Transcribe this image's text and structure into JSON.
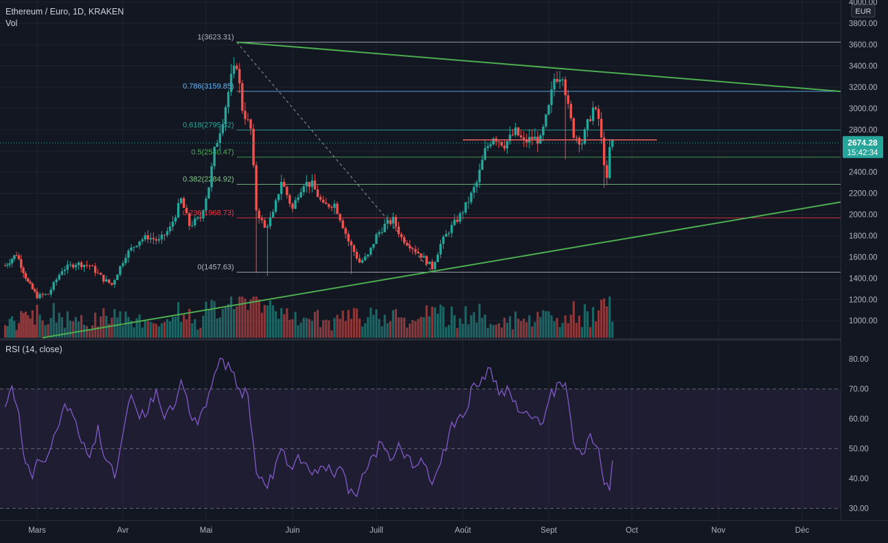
{
  "header": {
    "symbol_line": "Ethereum / Euro, 1D, KRAKEN",
    "volume_label": "Vol"
  },
  "rsi": {
    "label": "RSI (14, close)"
  },
  "price_scale": {
    "currency": "EUR",
    "last_price": "2674.28",
    "countdown": "15:42:34"
  },
  "colors": {
    "background": "#131722",
    "grid": "#1f2330",
    "up": "#26a69a",
    "down": "#ef5350",
    "trendline": "#4caf50",
    "rsi_line": "#7e57c2",
    "rsi_band": "rgba(126,87,194,0.10)",
    "last_price": "#26a69a",
    "resistance": "#f06262"
  },
  "chart_data": [
    {
      "type": "candlestick",
      "title": "Ethereum / Euro, 1D, KRAKEN",
      "x_ticks": [
        "Mars",
        "Avr",
        "Mai",
        "Juin",
        "Juill",
        "Août",
        "Sept",
        "Oct",
        "Nov",
        "Déc"
      ],
      "y_ticks": [
        "1000.00",
        "1200.00",
        "1400.00",
        "1600.00",
        "1800.00",
        "2000.00",
        "2200.00",
        "2400.00",
        "2600.00",
        "2800.00",
        "3000.00",
        "3200.00",
        "3400.00",
        "3600.00",
        "3800.00",
        "4000.00"
      ],
      "ylim": [
        840,
        4020
      ],
      "fib_levels": [
        {
          "label": "1(3623.31)",
          "value": 3623.31,
          "color": "#b2b5be"
        },
        {
          "label": "0.786(3159.85)",
          "value": 3159.85,
          "color": "#64b5f6"
        },
        {
          "label": "0.618(2795.32)",
          "value": 2795.32,
          "color": "#26a69a"
        },
        {
          "label": "0.5(2540.47)",
          "value": 2540.47,
          "color": "#4caf50"
        },
        {
          "label": "0.382(2284.92)",
          "value": 2284.92,
          "color": "#81c784"
        },
        {
          "label": "0.236(1968.73)",
          "value": 1968.73,
          "color": "#f23645"
        },
        {
          "label": "0(1457.63)",
          "value": 1457.63,
          "color": "#b2b5be"
        }
      ],
      "trendlines": [
        {
          "name": "upper",
          "from": [
            "2021-05-12",
            3623
          ],
          "to": [
            "2021-12-31",
            3125
          ]
        },
        {
          "name": "lower",
          "from": [
            "2021-03-03",
            840
          ],
          "to": [
            "2021-12-31",
            2190
          ]
        }
      ],
      "resistance": {
        "from": "2021-08-01",
        "to": "2021-10-10",
        "value": 2703
      },
      "last_price": 2674.28,
      "price_path": [
        [
          "2021-02-15",
          1520
        ],
        [
          "2021-02-20",
          1630
        ],
        [
          "2021-02-25",
          1360
        ],
        [
          "2021-03-01",
          1230
        ],
        [
          "2021-03-05",
          1250
        ],
        [
          "2021-03-10",
          1480
        ],
        [
          "2021-03-15",
          1540
        ],
        [
          "2021-03-20",
          1520
        ],
        [
          "2021-03-25",
          1390
        ],
        [
          "2021-03-28",
          1340
        ],
        [
          "2021-04-02",
          1620
        ],
        [
          "2021-04-07",
          1760
        ],
        [
          "2021-04-10",
          1790
        ],
        [
          "2021-04-14",
          1750
        ],
        [
          "2021-04-18",
          1870
        ],
        [
          "2021-04-22",
          2140
        ],
        [
          "2021-04-25",
          1900
        ],
        [
          "2021-04-29",
          1970
        ],
        [
          "2021-05-02",
          2270
        ],
        [
          "2021-05-04",
          2600
        ],
        [
          "2021-05-07",
          2900
        ],
        [
          "2021-05-10",
          3280
        ],
        [
          "2021-05-12",
          3420
        ],
        [
          "2021-05-14",
          3000
        ],
        [
          "2021-05-17",
          2800
        ],
        [
          "2021-05-19",
          2050
        ],
        [
          "2021-05-22",
          1870
        ],
        [
          "2021-05-25",
          2000
        ],
        [
          "2021-05-28",
          2320
        ],
        [
          "2021-06-01",
          2050
        ],
        [
          "2021-06-03",
          2200
        ],
        [
          "2021-06-05",
          2300
        ],
        [
          "2021-06-08",
          2280
        ],
        [
          "2021-06-12",
          2080
        ],
        [
          "2021-06-16",
          2100
        ],
        [
          "2021-06-18",
          1970
        ],
        [
          "2021-06-21",
          1750
        ],
        [
          "2021-06-25",
          1550
        ],
        [
          "2021-06-28",
          1610
        ],
        [
          "2021-07-01",
          1800
        ],
        [
          "2021-07-04",
          1900
        ],
        [
          "2021-07-07",
          1950
        ],
        [
          "2021-07-10",
          1780
        ],
        [
          "2021-07-14",
          1690
        ],
        [
          "2021-07-18",
          1590
        ],
        [
          "2021-07-21",
          1500
        ],
        [
          "2021-07-24",
          1720
        ],
        [
          "2021-07-27",
          1850
        ],
        [
          "2021-07-31",
          1990
        ],
        [
          "2021-08-03",
          2130
        ],
        [
          "2021-08-06",
          2300
        ],
        [
          "2021-08-09",
          2600
        ],
        [
          "2021-08-12",
          2740
        ],
        [
          "2021-08-16",
          2660
        ],
        [
          "2021-08-20",
          2780
        ],
        [
          "2021-08-23",
          2680
        ],
        [
          "2021-08-26",
          2720
        ],
        [
          "2021-08-29",
          2700
        ],
        [
          "2021-09-01",
          3000
        ],
        [
          "2021-09-03",
          3280
        ],
        [
          "2021-09-06",
          3330
        ],
        [
          "2021-09-08",
          3000
        ],
        [
          "2021-09-10",
          2760
        ],
        [
          "2021-09-13",
          2680
        ],
        [
          "2021-09-15",
          2850
        ],
        [
          "2021-09-17",
          3000
        ],
        [
          "2021-09-19",
          2900
        ],
        [
          "2021-09-21",
          2500
        ],
        [
          "2021-09-22",
          2310
        ],
        [
          "2021-09-23",
          2620
        ],
        [
          "2021-09-24",
          2674
        ]
      ]
    },
    {
      "type": "line",
      "title": "RSI (14, close)",
      "y_ticks": [
        "30.00",
        "40.00",
        "50.00",
        "60.00",
        "70.00",
        "80.00"
      ],
      "ylim": [
        26,
        86
      ],
      "bands": [
        30,
        50,
        70
      ],
      "x": [
        "2021-02-15",
        "2021-02-18",
        "2021-02-21",
        "2021-02-24",
        "2021-02-27",
        "2021-03-02",
        "2021-03-05",
        "2021-03-08",
        "2021-03-11",
        "2021-03-14",
        "2021-03-17",
        "2021-03-20",
        "2021-03-23",
        "2021-03-26",
        "2021-03-29",
        "2021-04-01",
        "2021-04-04",
        "2021-04-07",
        "2021-04-10",
        "2021-04-13",
        "2021-04-16",
        "2021-04-19",
        "2021-04-22",
        "2021-04-25",
        "2021-04-28",
        "2021-05-01",
        "2021-05-04",
        "2021-05-07",
        "2021-05-10",
        "2021-05-13",
        "2021-05-16",
        "2021-05-19",
        "2021-05-22",
        "2021-05-25",
        "2021-05-28",
        "2021-05-31",
        "2021-06-03",
        "2021-06-06",
        "2021-06-09",
        "2021-06-12",
        "2021-06-15",
        "2021-06-18",
        "2021-06-21",
        "2021-06-24",
        "2021-06-27",
        "2021-06-30",
        "2021-07-03",
        "2021-07-06",
        "2021-07-09",
        "2021-07-12",
        "2021-07-15",
        "2021-07-18",
        "2021-07-21",
        "2021-07-24",
        "2021-07-27",
        "2021-07-30",
        "2021-08-02",
        "2021-08-05",
        "2021-08-08",
        "2021-08-11",
        "2021-08-14",
        "2021-08-17",
        "2021-08-20",
        "2021-08-23",
        "2021-08-26",
        "2021-08-29",
        "2021-09-01",
        "2021-09-04",
        "2021-09-07",
        "2021-09-10",
        "2021-09-13",
        "2021-09-16",
        "2021-09-19",
        "2021-09-21",
        "2021-09-23",
        "2021-09-24"
      ],
      "values": [
        64,
        71,
        62,
        45,
        40,
        46,
        48,
        56,
        65,
        61,
        52,
        47,
        58,
        46,
        40,
        55,
        68,
        60,
        62,
        70,
        60,
        63,
        73,
        62,
        58,
        64,
        75,
        80,
        76,
        70,
        68,
        42,
        38,
        40,
        50,
        44,
        48,
        45,
        43,
        44,
        42,
        44,
        35,
        34,
        42,
        48,
        52,
        46,
        52,
        48,
        44,
        45,
        38,
        45,
        55,
        60,
        62,
        72,
        74,
        77,
        68,
        71,
        66,
        62,
        60,
        58,
        66,
        72,
        72,
        52,
        48,
        55,
        50,
        38,
        36,
        46
      ]
    }
  ]
}
